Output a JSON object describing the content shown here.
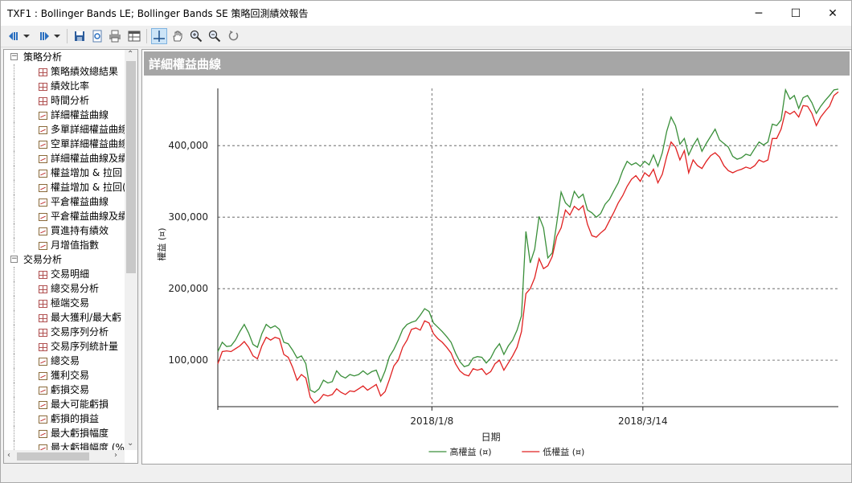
{
  "window": {
    "title": "TXF1 : Bollinger Bands LE; Bollinger Bands SE 策略回測績效報告",
    "buttons": {
      "minimize": "─",
      "maximize": "☐",
      "close": "✕"
    }
  },
  "toolbar": {
    "icons": [
      "back-icon",
      "dropdown-icon",
      "forward-icon",
      "dropdown-icon",
      "save-icon",
      "print-preview-icon",
      "print-icon",
      "table-icon",
      "crosshair-icon",
      "pan-hand-icon",
      "zoom-in-icon",
      "zoom-out-icon",
      "reset-zoom-icon"
    ]
  },
  "tree": {
    "items": [
      {
        "label": "策略分析",
        "level": 0,
        "expander": "−"
      },
      {
        "label": "策略績效總結果",
        "level": 1,
        "icon": "grid"
      },
      {
        "label": "績效比率",
        "level": 1,
        "icon": "grid"
      },
      {
        "label": "時間分析",
        "level": 1,
        "icon": "grid"
      },
      {
        "label": "詳細權益曲線",
        "level": 1,
        "icon": "line"
      },
      {
        "label": "多單詳細權益曲線",
        "level": 1,
        "icon": "line"
      },
      {
        "label": "空單詳細權益曲線",
        "level": 1,
        "icon": "line"
      },
      {
        "label": "詳細權益曲線及績",
        "level": 1,
        "icon": "line"
      },
      {
        "label": "權益增加 & 拉回",
        "level": 1,
        "icon": "line"
      },
      {
        "label": "權益增加 & 拉回(",
        "level": 1,
        "icon": "line"
      },
      {
        "label": "平倉權益曲線",
        "level": 1,
        "icon": "line"
      },
      {
        "label": "平倉權益曲線及績",
        "level": 1,
        "icon": "line"
      },
      {
        "label": "買進持有績效",
        "level": 1,
        "icon": "line"
      },
      {
        "label": "月增值指數",
        "level": 1,
        "icon": "line"
      },
      {
        "label": "交易分析",
        "level": 0,
        "expander": "−"
      },
      {
        "label": "交易明細",
        "level": 1,
        "icon": "grid"
      },
      {
        "label": "總交易分析",
        "level": 1,
        "icon": "grid"
      },
      {
        "label": "極端交易",
        "level": 1,
        "icon": "grid"
      },
      {
        "label": "最大獲利/最大虧",
        "level": 1,
        "icon": "grid"
      },
      {
        "label": "交易序列分析",
        "level": 1,
        "icon": "grid"
      },
      {
        "label": "交易序列統計量",
        "level": 1,
        "icon": "grid"
      },
      {
        "label": "總交易",
        "level": 1,
        "icon": "line"
      },
      {
        "label": "獲利交易",
        "level": 1,
        "icon": "line"
      },
      {
        "label": "虧損交易",
        "level": 1,
        "icon": "line"
      },
      {
        "label": "最大可能虧損",
        "level": 1,
        "icon": "line"
      },
      {
        "label": "虧損的損益",
        "level": 1,
        "icon": "line"
      },
      {
        "label": "最大虧損幅度",
        "level": 1,
        "icon": "line"
      },
      {
        "label": "最大虧損幅度 (%",
        "level": 1,
        "icon": "line"
      }
    ]
  },
  "chart_panel": {
    "title": "詳細權益曲線"
  },
  "chart_data": {
    "type": "line",
    "xlabel": "日期",
    "ylabel": "權益 (¤)",
    "x_tick_labels": [
      "2018/1/8",
      "2018/3/14"
    ],
    "y_tick_labels": [
      "100,000",
      "200,000",
      "300,000",
      "400,000"
    ],
    "ylim": [
      35000,
      480000
    ],
    "grid": true,
    "legend_position": "bottom-center",
    "series": [
      {
        "name": "高權益 (¤)",
        "color": "#3a8f3a",
        "values": [
          112000,
          125000,
          119000,
          120000,
          128000,
          140000,
          150000,
          138000,
          122000,
          118000,
          137000,
          150000,
          145000,
          148000,
          143000,
          125000,
          123000,
          114000,
          103000,
          106000,
          95000,
          58000,
          55000,
          60000,
          72000,
          68000,
          70000,
          85000,
          78000,
          75000,
          80000,
          78000,
          80000,
          85000,
          80000,
          84000,
          86000,
          70000,
          85000,
          105000,
          115000,
          128000,
          143000,
          150000,
          153000,
          155000,
          163000,
          172000,
          168000,
          152000,
          146000,
          140000,
          133000,
          125000,
          110000,
          98000,
          91000,
          93000,
          103000,
          105000,
          104000,
          96000,
          103000,
          115000,
          123000,
          108000,
          120000,
          128000,
          142000,
          162000,
          280000,
          236000,
          255000,
          301000,
          285000,
          243000,
          250000,
          291000,
          335000,
          320000,
          314000,
          336000,
          327000,
          332000,
          310000,
          306000,
          300000,
          305000,
          318000,
          325000,
          337000,
          348000,
          365000,
          378000,
          373000,
          376000,
          371000,
          378000,
          373000,
          387000,
          371000,
          390000,
          420000,
          440000,
          428000,
          402000,
          410000,
          387000,
          400000,
          410000,
          392000,
          403000,
          413000,
          423000,
          408000,
          403000,
          398000,
          385000,
          381000,
          383000,
          388000,
          386000,
          396000,
          405000,
          401000,
          405000,
          430000,
          428000,
          436000,
          478000,
          465000,
          470000,
          452000,
          467000,
          470000,
          460000,
          445000,
          455000,
          463000,
          470000,
          478000,
          479000
        ]
      },
      {
        "name": "低權益 (¤)",
        "color": "#e02020",
        "values": [
          95000,
          112000,
          113000,
          112000,
          116000,
          120000,
          126000,
          118000,
          106000,
          102000,
          120000,
          132000,
          128000,
          132000,
          130000,
          108000,
          104000,
          90000,
          72000,
          80000,
          75000,
          48000,
          40000,
          44000,
          52000,
          50000,
          52000,
          60000,
          55000,
          52000,
          57000,
          56000,
          60000,
          64000,
          58000,
          62000,
          66000,
          50000,
          56000,
          73000,
          92000,
          100000,
          118000,
          128000,
          143000,
          145000,
          142000,
          155000,
          152000,
          137000,
          130000,
          125000,
          118000,
          110000,
          95000,
          85000,
          80000,
          78000,
          88000,
          86000,
          88000,
          80000,
          84000,
          95000,
          100000,
          86000,
          96000,
          106000,
          118000,
          140000,
          193000,
          200000,
          215000,
          242000,
          228000,
          232000,
          245000,
          273000,
          285000,
          310000,
          303000,
          315000,
          310000,
          316000,
          290000,
          274000,
          272000,
          278000,
          283000,
          295000,
          307000,
          320000,
          330000,
          343000,
          353000,
          358000,
          350000,
          362000,
          357000,
          367000,
          348000,
          360000,
          385000,
          405000,
          398000,
          380000,
          393000,
          362000,
          380000,
          372000,
          368000,
          378000,
          386000,
          390000,
          384000,
          372000,
          365000,
          362000,
          365000,
          367000,
          370000,
          368000,
          372000,
          380000,
          377000,
          380000,
          410000,
          410000,
          423000,
          448000,
          444000,
          448000,
          440000,
          456000,
          455000,
          445000,
          428000,
          440000,
          448000,
          455000,
          470000,
          475000
        ]
      }
    ]
  },
  "status": {
    "text": ""
  }
}
